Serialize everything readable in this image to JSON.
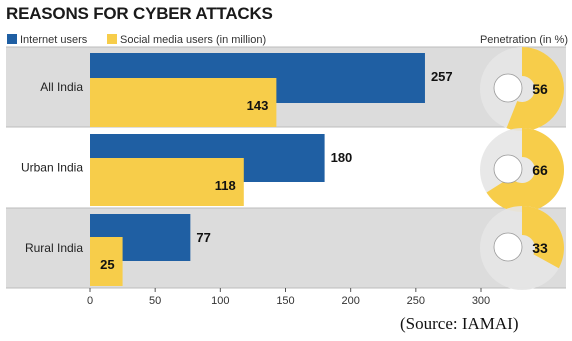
{
  "chart_data": {
    "type": "bar",
    "title": "REASONS FOR CYBER ATTACKS",
    "categories": [
      "All India",
      "Urban India",
      "Rural India"
    ],
    "series": [
      {
        "name": "Internet users",
        "values": [
          257,
          180,
          77
        ],
        "color": "#1f5fa3"
      },
      {
        "name": "Social media users (in million)",
        "values": [
          143,
          118,
          25
        ],
        "color": "#f7cd4a"
      }
    ],
    "penetration": {
      "label": "Penetration (in %)",
      "values": [
        56,
        66,
        33
      ]
    },
    "x_ticks": [
      0,
      50,
      100,
      150,
      200,
      250,
      300
    ],
    "xlim": [
      0,
      300
    ],
    "orientation": "horizontal",
    "grid": false,
    "legend": "top-left"
  },
  "source": "(Source: IAMAI)",
  "colors": {
    "row_band": "#dcdcdc",
    "row_band_alt": "#ffffff",
    "donut_fill": "#f7cd4a",
    "donut_ring": "#e6e6e6"
  }
}
